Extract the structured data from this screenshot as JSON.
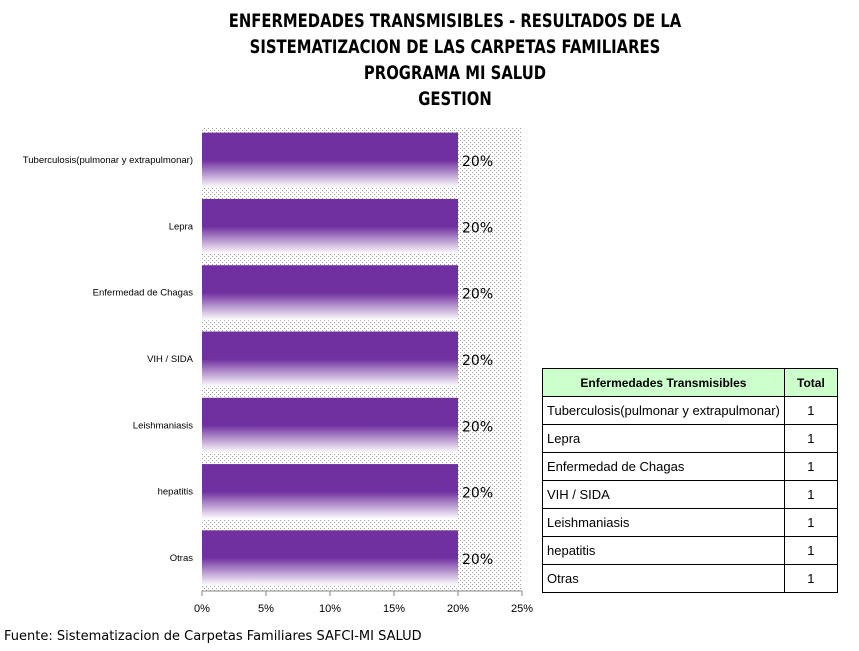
{
  "chart_data": {
    "type": "bar",
    "orientation": "horizontal",
    "title_lines": [
      "ENFERMEDADES TRANSMISIBLES - RESULTADOS DE LA",
      "SISTEMATIZACION DE LAS CARPETAS FAMILIARES",
      "PROGRAMA MI SALUD",
      "GESTION"
    ],
    "categories": [
      "Tuberculosis(pulmonar y extrapulmonar)",
      "Lepra",
      "Enfermedad de Chagas",
      "VIH / SIDA",
      "Leishmaniasis",
      "hepatitis",
      "Otras"
    ],
    "values": [
      0.2,
      0.2,
      0.2,
      0.2,
      0.2,
      0.2,
      0.2
    ],
    "data_labels": [
      "20%",
      "20%",
      "20%",
      "20%",
      "20%",
      "20%",
      "20%"
    ],
    "x_ticks": [
      "0%",
      "5%",
      "10%",
      "15%",
      "20%",
      "25%"
    ],
    "xlim": [
      0,
      0.25
    ],
    "bar_color": "#7030a0",
    "grid": false
  },
  "table": {
    "headers": [
      "Enfermedades Transmisibles",
      "Total"
    ],
    "rows": [
      [
        "Tuberculosis(pulmonar y extrapulmonar)",
        "1"
      ],
      [
        "Lepra",
        "1"
      ],
      [
        "Enfermedad de Chagas",
        "1"
      ],
      [
        "VIH / SIDA",
        "1"
      ],
      [
        "Leishmaniasis",
        "1"
      ],
      [
        "hepatitis",
        "1"
      ],
      [
        "Otras",
        "1"
      ]
    ],
    "header_color": "#ccffcc"
  },
  "source": "Fuente: Sistematizacion de Carpetas Familiares SAFCI-MI SALUD"
}
